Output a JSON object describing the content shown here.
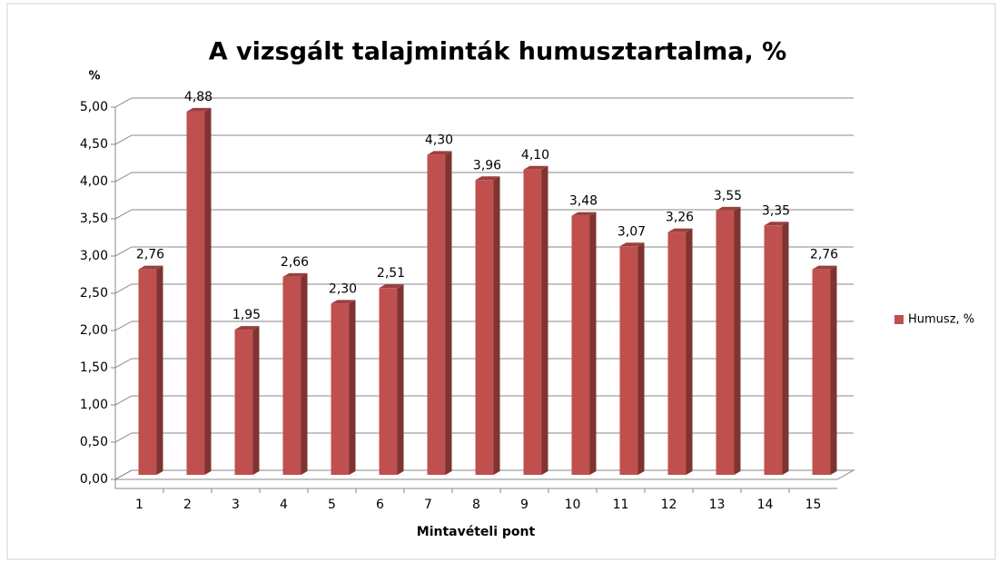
{
  "chart_data": {
    "type": "bar",
    "title": "A vizsgált talajminták humusztartalma, %",
    "y_axis_label": "%",
    "x_axis_label": "Mintavételi pont",
    "categories": [
      "1",
      "2",
      "3",
      "4",
      "5",
      "6",
      "7",
      "8",
      "9",
      "10",
      "11",
      "12",
      "13",
      "14",
      "15"
    ],
    "series": [
      {
        "name": "Humusz, %",
        "color": "#c0504d",
        "values": [
          2.76,
          4.88,
          1.95,
          2.66,
          2.3,
          2.51,
          4.3,
          3.96,
          4.1,
          3.48,
          3.07,
          3.26,
          3.55,
          3.35,
          2.76
        ],
        "value_labels": [
          "2,76",
          "4,88",
          "1,95",
          "2,66",
          "2,30",
          "2,51",
          "4,30",
          "3,96",
          "4,10",
          "3,48",
          "3,07",
          "3,26",
          "3,55",
          "3,35",
          "2,76"
        ]
      }
    ],
    "ylim": [
      0,
      5
    ],
    "yticks": [
      {
        "value": 0,
        "label": "0,00"
      },
      {
        "value": 0.5,
        "label": "0,50"
      },
      {
        "value": 1,
        "label": "1,00"
      },
      {
        "value": 1.5,
        "label": "1,50"
      },
      {
        "value": 2,
        "label": "2,00"
      },
      {
        "value": 2.5,
        "label": "2,50"
      },
      {
        "value": 3,
        "label": "3,00"
      },
      {
        "value": 3.5,
        "label": "3,50"
      },
      {
        "value": 4,
        "label": "4,00"
      },
      {
        "value": 4.5,
        "label": "4,50"
      },
      {
        "value": 5,
        "label": "5,00"
      }
    ],
    "grid": true,
    "legend": "right"
  }
}
